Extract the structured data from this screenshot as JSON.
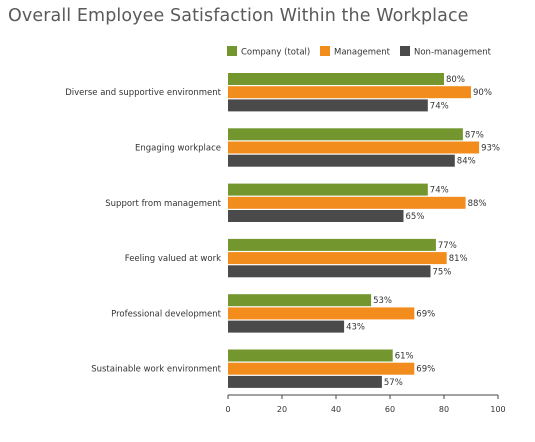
{
  "chart_data": {
    "type": "bar",
    "orientation": "horizontal",
    "title": "Overall Employee Satisfaction Within the Workplace",
    "categories": [
      "Diverse and supportive environment",
      "Engaging workplace",
      "Support from management",
      "Feeling valued at work",
      "Professional development",
      "Sustainable work environment"
    ],
    "series": [
      {
        "name": "Company (total)",
        "color": "#73962f",
        "values": [
          80,
          87,
          74,
          77,
          53,
          61
        ]
      },
      {
        "name": "Management",
        "color": "#f28c1c",
        "values": [
          90,
          93,
          88,
          81,
          69,
          69
        ]
      },
      {
        "name": "Non-management",
        "color": "#4a4a4a",
        "values": [
          74,
          84,
          65,
          75,
          43,
          57
        ]
      }
    ],
    "value_suffix": "%",
    "xlim": [
      0,
      100
    ],
    "xticks": [
      0,
      20,
      40,
      60,
      80,
      100
    ],
    "grid": false,
    "legend_position": "top-right"
  }
}
